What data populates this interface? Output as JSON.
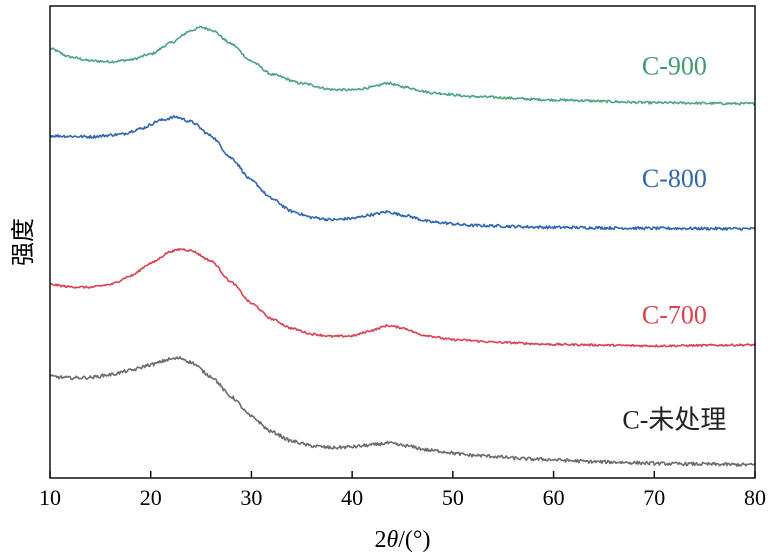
{
  "chart_data": {
    "type": "line",
    "title": "",
    "xlabel_prefix": "2",
    "xlabel_var": "θ",
    "xlabel_suffix": "/(°)",
    "ylabel": "强度",
    "xlim": [
      10,
      80
    ],
    "ylim": [
      0,
      1
    ],
    "x_ticks": [
      "10",
      "20",
      "30",
      "40",
      "50",
      "60",
      "70",
      "80"
    ],
    "y_ticks": [],
    "grid": false,
    "series": [
      {
        "name": "C-900",
        "color": "#4aa67a",
        "label_color": "#3f9a6c",
        "label_anchor_x": 72,
        "label_anchor_y": 0.855,
        "noise": 0.0025,
        "points": [
          [
            10,
            0.91
          ],
          [
            12,
            0.892
          ],
          [
            14,
            0.884
          ],
          [
            16,
            0.882
          ],
          [
            18,
            0.886
          ],
          [
            20,
            0.898
          ],
          [
            22,
            0.922
          ],
          [
            24,
            0.948
          ],
          [
            25,
            0.955
          ],
          [
            26,
            0.95
          ],
          [
            28,
            0.92
          ],
          [
            30,
            0.883
          ],
          [
            32,
            0.855
          ],
          [
            35,
            0.836
          ],
          [
            38,
            0.823
          ],
          [
            40,
            0.822
          ],
          [
            42,
            0.828
          ],
          [
            43.5,
            0.837
          ],
          [
            45,
            0.829
          ],
          [
            48,
            0.816
          ],
          [
            52,
            0.808
          ],
          [
            60,
            0.801
          ],
          [
            70,
            0.795
          ],
          [
            80,
            0.793
          ]
        ]
      },
      {
        "name": "C-800",
        "color": "#2e66b0",
        "label_color": "#2e66b0",
        "label_anchor_x": 72,
        "label_anchor_y": 0.617,
        "noise": 0.003,
        "points": [
          [
            10,
            0.725
          ],
          [
            14,
            0.723
          ],
          [
            17,
            0.728
          ],
          [
            19,
            0.74
          ],
          [
            21,
            0.758
          ],
          [
            22.5,
            0.765
          ],
          [
            24,
            0.755
          ],
          [
            26,
            0.725
          ],
          [
            28,
            0.678
          ],
          [
            30,
            0.63
          ],
          [
            32,
            0.592
          ],
          [
            34,
            0.565
          ],
          [
            36,
            0.552
          ],
          [
            38,
            0.547
          ],
          [
            40,
            0.55
          ],
          [
            42,
            0.558
          ],
          [
            43.5,
            0.564
          ],
          [
            45,
            0.557
          ],
          [
            48,
            0.542
          ],
          [
            52,
            0.535
          ],
          [
            60,
            0.531
          ],
          [
            70,
            0.529
          ],
          [
            80,
            0.528
          ]
        ]
      },
      {
        "name": "C-700",
        "color": "#d9434f",
        "label_color": "#d9434f",
        "label_anchor_x": 72,
        "label_anchor_y": 0.327,
        "noise": 0.0022,
        "points": [
          [
            10,
            0.41
          ],
          [
            12,
            0.405
          ],
          [
            14,
            0.404
          ],
          [
            16,
            0.41
          ],
          [
            18,
            0.428
          ],
          [
            20,
            0.455
          ],
          [
            22,
            0.48
          ],
          [
            23,
            0.485
          ],
          [
            24,
            0.482
          ],
          [
            26,
            0.46
          ],
          [
            28,
            0.415
          ],
          [
            30,
            0.37
          ],
          [
            32,
            0.337
          ],
          [
            34,
            0.317
          ],
          [
            36,
            0.305
          ],
          [
            38,
            0.3
          ],
          [
            40,
            0.301
          ],
          [
            42,
            0.313
          ],
          [
            43.5,
            0.323
          ],
          [
            45,
            0.318
          ],
          [
            47,
            0.303
          ],
          [
            50,
            0.293
          ],
          [
            55,
            0.287
          ],
          [
            60,
            0.283
          ],
          [
            70,
            0.28
          ],
          [
            80,
            0.282
          ]
        ]
      },
      {
        "name": "C-未处理",
        "color": "#6b6b6b",
        "label_color": "#222222",
        "label_anchor_x": 72,
        "label_anchor_y": 0.105,
        "noise": 0.0035,
        "points": [
          [
            10,
            0.215
          ],
          [
            12,
            0.212
          ],
          [
            14,
            0.213
          ],
          [
            16,
            0.219
          ],
          [
            18,
            0.228
          ],
          [
            20,
            0.24
          ],
          [
            22,
            0.252
          ],
          [
            23,
            0.254
          ],
          [
            24,
            0.245
          ],
          [
            26,
            0.215
          ],
          [
            28,
            0.172
          ],
          [
            30,
            0.13
          ],
          [
            32,
            0.098
          ],
          [
            34,
            0.078
          ],
          [
            36,
            0.068
          ],
          [
            38,
            0.064
          ],
          [
            40,
            0.066
          ],
          [
            42,
            0.07
          ],
          [
            43.5,
            0.074
          ],
          [
            45,
            0.069
          ],
          [
            48,
            0.058
          ],
          [
            52,
            0.048
          ],
          [
            58,
            0.04
          ],
          [
            65,
            0.034
          ],
          [
            72,
            0.03
          ],
          [
            80,
            0.028
          ]
        ]
      }
    ]
  }
}
